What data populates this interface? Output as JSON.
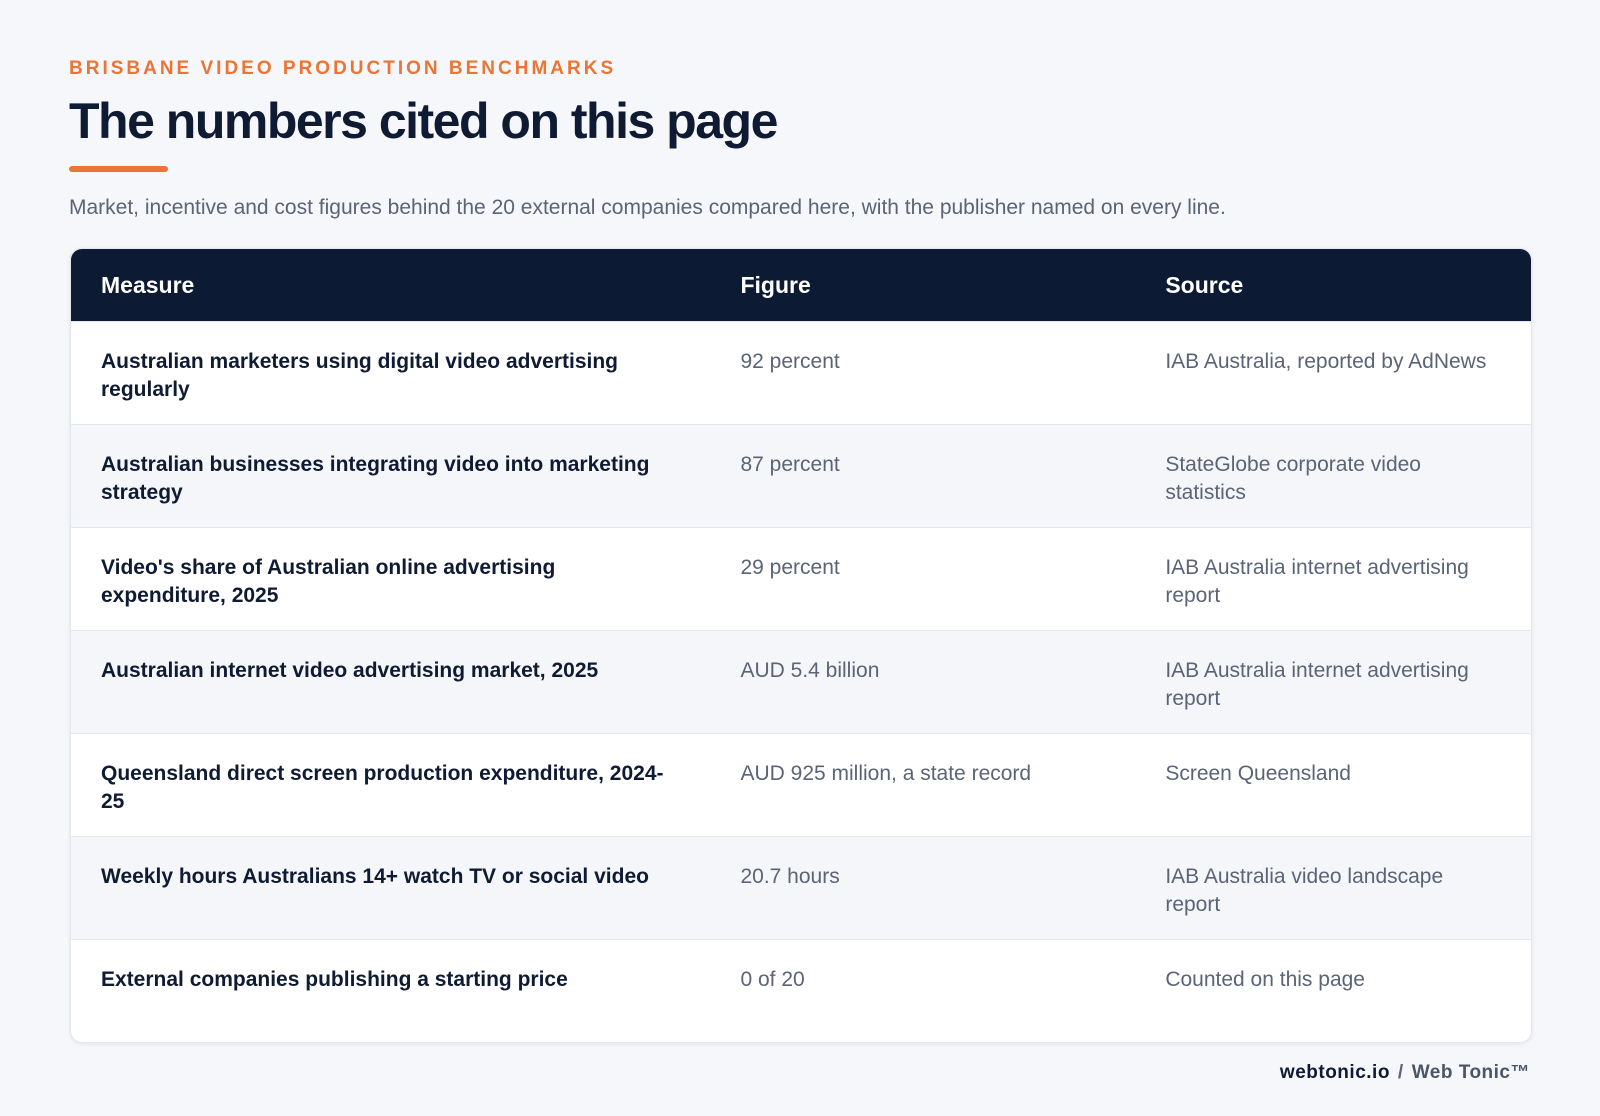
{
  "header": {
    "eyebrow": "BRISBANE VIDEO PRODUCTION BENCHMARKS",
    "title": "The numbers cited on this page",
    "subtitle": "Market, incentive and cost figures behind the 20 external companies compared here, with the publisher named on every line."
  },
  "table": {
    "columns": [
      "Measure",
      "Figure",
      "Source"
    ],
    "rows": [
      [
        "Australian marketers using digital video advertising regularly",
        "92 percent",
        "IAB Australia, reported by AdNews"
      ],
      [
        "Australian businesses integrating video into marketing strategy",
        "87 percent",
        "StateGlobe corporate video statistics"
      ],
      [
        "Video's share of Australian online advertising expenditure, 2025",
        "29 percent",
        "IAB Australia internet advertising report"
      ],
      [
        "Australian internet video advertising market, 2025",
        "AUD 5.4 billion",
        "IAB Australia internet advertising report"
      ],
      [
        "Queensland direct screen production expenditure, 2024-25",
        "AUD 925 million, a state record",
        "Screen Queensland"
      ],
      [
        "Weekly hours Australians 14+ watch TV or social video",
        "20.7 hours",
        "IAB Australia video landscape report"
      ],
      [
        "External companies publishing a starting price",
        "0 of 20",
        "Counted on this page"
      ]
    ]
  },
  "footer": {
    "domain": "webtonic.io",
    "separator": "/",
    "brand": "Web Tonic™"
  }
}
